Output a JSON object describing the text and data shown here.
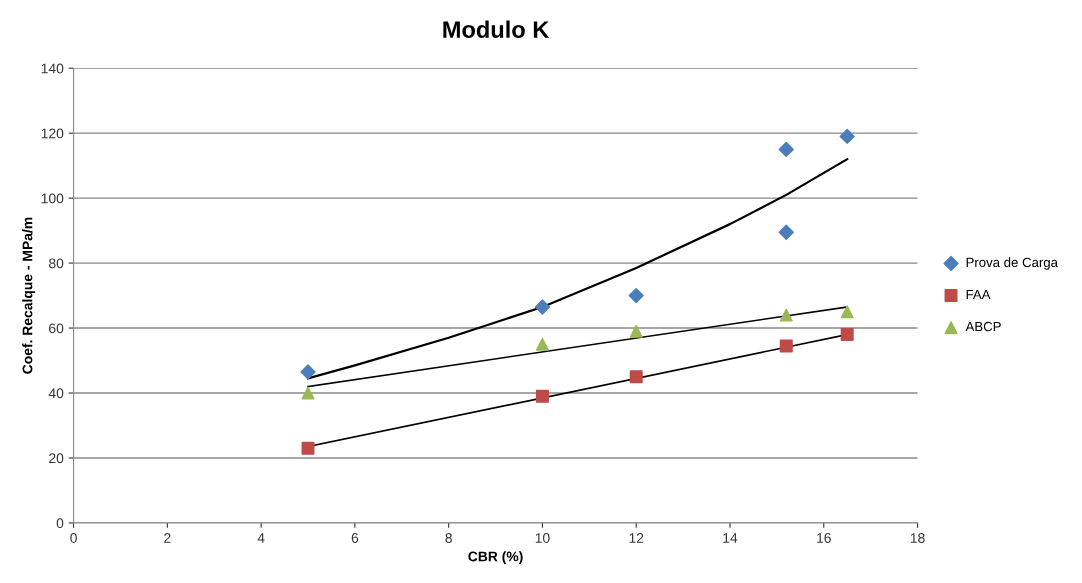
{
  "chart_data": {
    "type": "scatter",
    "title": "Modulo K",
    "xlabel": "CBR (%)",
    "ylabel": "Coef. Recalque - MPa/m",
    "xlim": [
      0,
      18
    ],
    "xticks": [
      0,
      2,
      4,
      6,
      8,
      10,
      12,
      14,
      16,
      18
    ],
    "ylim": [
      0,
      140
    ],
    "yticks": [
      0,
      20,
      40,
      60,
      80,
      100,
      120,
      140
    ],
    "grid": "y",
    "legend": "right",
    "series": [
      {
        "name": "Prova de Carga",
        "marker": "diamond",
        "color": "#4a7ebb",
        "x": [
          5,
          10,
          12,
          15.2,
          15.2,
          16.5
        ],
        "values": [
          46.5,
          66.5,
          70,
          115,
          89.5,
          119
        ]
      },
      {
        "name": "FAA",
        "marker": "square",
        "color": "#be4b48",
        "x": [
          5,
          10,
          12,
          15.2,
          16.5
        ],
        "values": [
          23,
          39,
          45,
          54.5,
          58
        ]
      },
      {
        "name": "ABCP",
        "marker": "triangle",
        "color": "#98b954",
        "x": [
          5,
          10,
          12,
          15.2,
          16.5
        ],
        "values": [
          40,
          55,
          59,
          64,
          65
        ]
      },
      {
        "type": "line",
        "marker": "none",
        "color": "#000000",
        "x": [
          5,
          6,
          8,
          10,
          12,
          14,
          15.2,
          16.5
        ],
        "values": [
          44.5,
          48.5,
          57,
          66.5,
          78.5,
          92,
          101,
          112
        ]
      },
      {
        "type": "line",
        "marker": "none",
        "color": "#000000",
        "x": [
          5,
          16.5
        ],
        "values": [
          42,
          66.5
        ]
      },
      {
        "type": "line",
        "marker": "none",
        "color": "#000000",
        "x": [
          5,
          16.5
        ],
        "values": [
          23.5,
          58
        ]
      }
    ]
  }
}
